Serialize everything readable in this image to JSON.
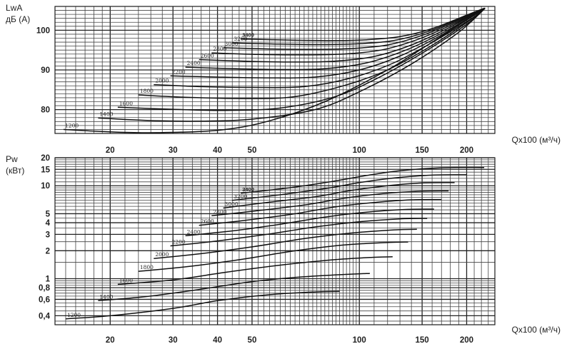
{
  "chart_data": [
    {
      "type": "line",
      "title": "",
      "ylabel": "LwA\nдБ (А)",
      "xlabel": "Qx100 (м³/ч)",
      "x_scale": "log",
      "xlim": [
        14,
        240
      ],
      "ylim": [
        74,
        106
      ],
      "x_ticks": [
        20,
        30,
        40,
        50,
        100,
        150,
        200
      ],
      "y_ticks": [
        80,
        90,
        100
      ],
      "grid": true,
      "series": [
        {
          "name": "1200",
          "x": [
            14.8,
            20,
            27,
            40,
            55,
            80,
            120,
            160,
            225
          ],
          "y": [
            75.0,
            74.4,
            74.2,
            74.8,
            77.0,
            82.0,
            90.0,
            97.0,
            105.5
          ]
        },
        {
          "name": "1400",
          "x": [
            18.5,
            25,
            35,
            50,
            75,
            100,
            140,
            190,
            225
          ],
          "y": [
            77.9,
            77.3,
            77.1,
            77.6,
            80.0,
            84.5,
            91.5,
            99.5,
            105.5
          ]
        },
        {
          "name": "1600",
          "x": [
            21,
            30,
            42,
            60,
            85,
            110,
            150,
            200,
            225
          ],
          "y": [
            80.6,
            80.1,
            79.8,
            80.4,
            83.2,
            87.5,
            94.2,
            101.5,
            105.5
          ]
        },
        {
          "name": "1800",
          "x": [
            24,
            33,
            47,
            65,
            90,
            120,
            160,
            205,
            225
          ],
          "y": [
            83.7,
            83.1,
            82.8,
            83.2,
            86.0,
            90.0,
            96.2,
            102.6,
            105.5
          ]
        },
        {
          "name": "2000",
          "x": [
            26.5,
            36,
            50,
            70,
            95,
            125,
            165,
            210,
            225
          ],
          "y": [
            86.3,
            85.8,
            85.6,
            85.8,
            88.0,
            91.8,
            97.6,
            103.4,
            105.5
          ]
        },
        {
          "name": "2200",
          "x": [
            29.5,
            40,
            55,
            75,
            100,
            130,
            170,
            212,
            225
          ],
          "y": [
            88.5,
            88.2,
            88.0,
            88.2,
            90.0,
            93.5,
            98.8,
            104.0,
            105.5
          ]
        },
        {
          "name": "2400",
          "x": [
            32.5,
            45,
            60,
            80,
            105,
            135,
            175,
            215,
            225
          ],
          "y": [
            90.7,
            90.3,
            90.1,
            90.3,
            91.8,
            95.0,
            99.8,
            104.4,
            105.5
          ]
        },
        {
          "name": "2600",
          "x": [
            35.5,
            48,
            65,
            85,
            110,
            140,
            180,
            217,
            225
          ],
          "y": [
            92.6,
            92.2,
            92.0,
            92.2,
            93.4,
            96.3,
            100.8,
            104.8,
            105.5
          ]
        },
        {
          "name": "2800",
          "x": [
            38.5,
            52,
            70,
            90,
            115,
            145,
            185,
            218,
            225
          ],
          "y": [
            94.3,
            93.9,
            93.8,
            94.0,
            95.0,
            97.6,
            101.7,
            105.0,
            105.5
          ]
        },
        {
          "name": "3000",
          "x": [
            41.5,
            55,
            75,
            95,
            120,
            150,
            190,
            220,
            225
          ],
          "y": [
            95.6,
            95.3,
            95.2,
            95.4,
            96.3,
            98.7,
            102.5,
            105.1,
            105.5
          ]
        },
        {
          "name": "3200",
          "x": [
            44,
            60,
            80,
            100,
            125,
            155,
            195,
            221,
            225
          ],
          "y": [
            96.8,
            96.5,
            96.4,
            96.6,
            97.4,
            99.6,
            103.2,
            105.3,
            105.5
          ]
        },
        {
          "name": "3400",
          "x": [
            46.5,
            65,
            85,
            105,
            130,
            160,
            200,
            222,
            225
          ],
          "y": [
            97.8,
            97.5,
            97.4,
            97.6,
            98.4,
            100.4,
            103.8,
            105.4,
            105.5
          ]
        }
      ]
    },
    {
      "type": "line",
      "title": "",
      "ylabel": "Pw\n(кВт)",
      "xlabel": "Qx100 (м³/ч)",
      "x_scale": "log",
      "y_scale": "log",
      "xlim": [
        14,
        240
      ],
      "ylim": [
        0.32,
        20
      ],
      "x_ticks": [
        20,
        30,
        40,
        50,
        100,
        150,
        200
      ],
      "y_ticks": [
        20,
        15,
        10,
        5,
        4,
        3,
        2,
        1,
        0.8,
        0.6,
        0.4
      ],
      "y_tick_labels": [
        "20",
        "15",
        "10",
        "5",
        "4",
        "3",
        "2",
        "1",
        "0,8",
        "0,6",
        "0,4"
      ],
      "grid": true,
      "series": [
        {
          "name": "1200",
          "x": [
            15,
            20,
            30,
            40,
            55,
            75,
            88
          ],
          "y": [
            0.37,
            0.4,
            0.48,
            0.58,
            0.67,
            0.72,
            0.73
          ]
        },
        {
          "name": "1400",
          "x": [
            18.5,
            25,
            35,
            50,
            70,
            95,
            107
          ],
          "y": [
            0.58,
            0.64,
            0.76,
            0.93,
            1.05,
            1.12,
            1.14
          ]
        },
        {
          "name": "1600",
          "x": [
            21,
            30,
            42,
            60,
            85,
            110,
            124
          ],
          "y": [
            0.87,
            0.97,
            1.17,
            1.4,
            1.6,
            1.7,
            1.72
          ]
        },
        {
          "name": "1800",
          "x": [
            24,
            33,
            47,
            65,
            90,
            120,
            137
          ],
          "y": [
            1.2,
            1.35,
            1.62,
            1.98,
            2.3,
            2.45,
            2.48
          ]
        },
        {
          "name": "2000",
          "x": [
            26.5,
            36,
            50,
            70,
            95,
            125,
            145
          ],
          "y": [
            1.65,
            1.86,
            2.2,
            2.7,
            3.1,
            3.35,
            3.4
          ]
        },
        {
          "name": "2200",
          "x": [
            29.5,
            40,
            55,
            75,
            100,
            130,
            155
          ],
          "y": [
            2.25,
            2.55,
            3.0,
            3.6,
            4.1,
            4.4,
            4.45
          ]
        },
        {
          "name": "2400",
          "x": [
            32.5,
            45,
            60,
            80,
            105,
            135,
            162
          ],
          "y": [
            2.9,
            3.3,
            3.85,
            4.6,
            5.2,
            5.55,
            5.6
          ]
        },
        {
          "name": "2600",
          "x": [
            35.5,
            48,
            65,
            85,
            110,
            140,
            170
          ],
          "y": [
            3.75,
            4.25,
            4.95,
            5.9,
            6.6,
            7.05,
            7.1
          ]
        },
        {
          "name": "2800",
          "x": [
            38.5,
            52,
            70,
            90,
            115,
            145,
            178
          ],
          "y": [
            4.75,
            5.4,
            6.2,
            7.3,
            8.2,
            8.7,
            8.8
          ]
        },
        {
          "name": "3000",
          "x": [
            41.5,
            55,
            75,
            95,
            120,
            150,
            185
          ],
          "y": [
            5.75,
            6.6,
            7.6,
            8.9,
            10.0,
            10.7,
            10.8
          ]
        },
        {
          "name": "3200",
          "x": [
            44,
            60,
            80,
            100,
            125,
            160,
            200
          ],
          "y": [
            6.95,
            8.0,
            9.3,
            10.8,
            12.1,
            13.0,
            13.1
          ]
        },
        {
          "name": "3400",
          "x": [
            46.5,
            65,
            85,
            105,
            130,
            170,
            224
          ],
          "y": [
            8.3,
            9.6,
            11.2,
            12.9,
            14.5,
            15.6,
            15.7
          ]
        }
      ]
    }
  ]
}
